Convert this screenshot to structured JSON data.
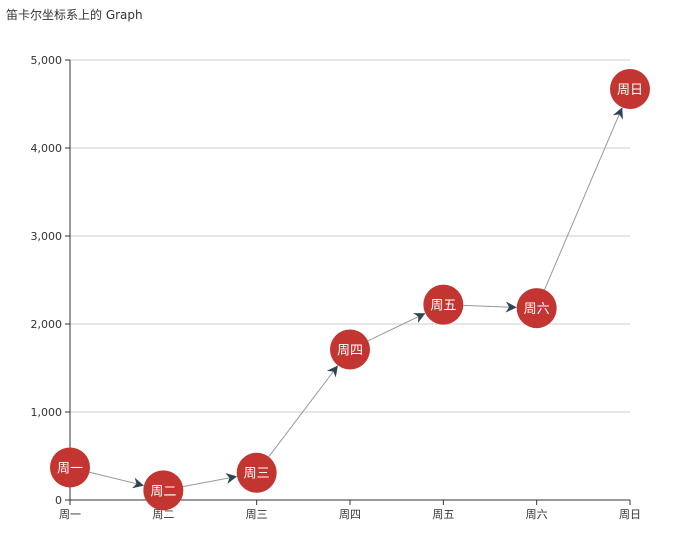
{
  "chart_data": {
    "type": "graph",
    "title": "笛卡尔坐标系上的 Graph",
    "categories": [
      "周一",
      "周二",
      "周三",
      "周四",
      "周五",
      "周六",
      "周日"
    ],
    "values": [
      370,
      110,
      310,
      1710,
      2220,
      2180,
      4670
    ],
    "node_labels": [
      "周一",
      "周二",
      "周三",
      "周四",
      "周五",
      "周六",
      "周日"
    ],
    "edges": [
      [
        0,
        1
      ],
      [
        1,
        2
      ],
      [
        2,
        3
      ],
      [
        3,
        4
      ],
      [
        4,
        5
      ],
      [
        5,
        6
      ]
    ],
    "ylim": [
      0,
      5000
    ],
    "yticks": [
      0,
      1000,
      2000,
      3000,
      4000,
      5000
    ],
    "ytick_labels": [
      "0",
      "1,000",
      "2,000",
      "3,000",
      "4,000",
      "5,000"
    ],
    "xlabel": "",
    "ylabel": "",
    "grid": true,
    "colors": {
      "node": "#c23531",
      "edge": "#999999",
      "arrow": "#2f4554",
      "grid": "#cccccc",
      "axis": "#333333"
    }
  }
}
